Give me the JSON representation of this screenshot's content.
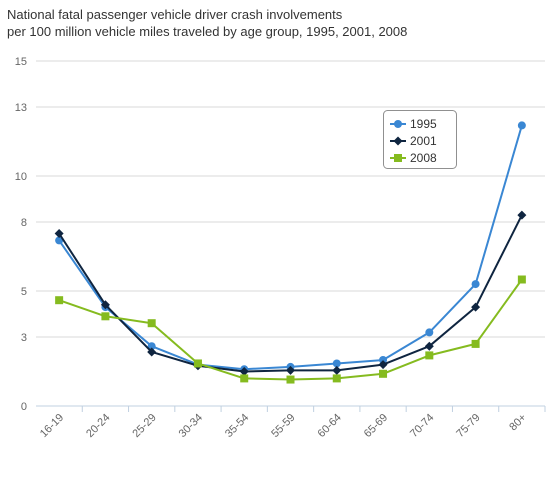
{
  "chart_data": {
    "type": "line",
    "title_line1": "National fatal passenger vehicle driver crash involvements",
    "title_line2": "per 100 million vehicle miles traveled by age group, 1995, 2001, 2008",
    "categories": [
      "16-19",
      "20-24",
      "25-29",
      "30-34",
      "35-54",
      "55-59",
      "60-64",
      "65-69",
      "70-74",
      "75-79",
      "80+"
    ],
    "y_ticks": [
      0,
      3,
      5,
      8,
      10,
      13,
      15
    ],
    "ylim": [
      0,
      15
    ],
    "grid": true,
    "legend_position": "top-right",
    "series": [
      {
        "name": "1995",
        "color": "#3a87d3",
        "marker": "circle",
        "values": [
          7.2,
          4.3,
          2.6,
          1.8,
          1.6,
          1.7,
          1.85,
          2.0,
          3.2,
          5.3,
          12.2
        ]
      },
      {
        "name": "2001",
        "color": "#0f2540",
        "marker": "diamond",
        "values": [
          7.5,
          4.4,
          2.35,
          1.75,
          1.5,
          1.55,
          1.55,
          1.8,
          2.6,
          4.3,
          8.3
        ]
      },
      {
        "name": "2008",
        "color": "#85bb1f",
        "marker": "square",
        "values": [
          4.6,
          3.9,
          3.6,
          1.85,
          1.2,
          1.15,
          1.2,
          1.4,
          2.2,
          2.7,
          5.5
        ]
      }
    ]
  }
}
